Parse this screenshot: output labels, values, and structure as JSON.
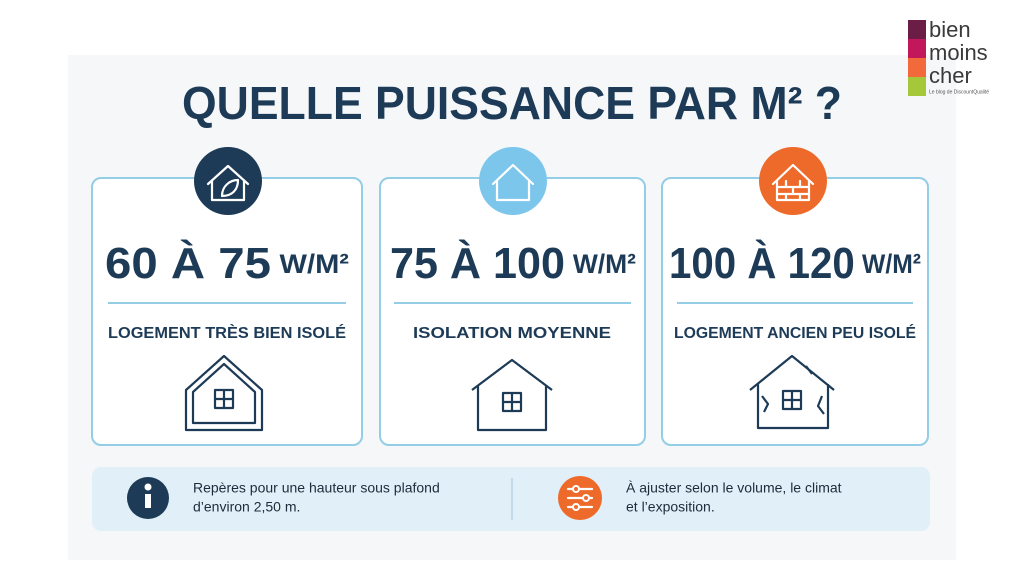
{
  "logo": {
    "lines": [
      "bien",
      "moins",
      "cher"
    ],
    "tagline": "Le blog de DiscountQualité"
  },
  "header": {
    "title": "QUELLE PUISSANCE PAR M² ?"
  },
  "cards": [
    {
      "range": "60 À 75",
      "unit": "W/M²",
      "label": "LOGEMENT TRÈS BIEN ISOLÉ"
    },
    {
      "range": "75 À 100",
      "unit": "W/M²",
      "label": "ISOLATION MOYENNE"
    },
    {
      "range": "100 À 120",
      "unit": "W/M²",
      "label": "LOGEMENT ANCIEN PEU ISOLÉ"
    }
  ],
  "footer": {
    "notes": [
      {
        "lines": [
          "Repères pour une hauteur sous plafond",
          "d’environ 2,50 m."
        ]
      },
      {
        "lines": [
          "À ajuster selon le volume, le climat",
          "et l’exposition."
        ]
      }
    ]
  }
}
